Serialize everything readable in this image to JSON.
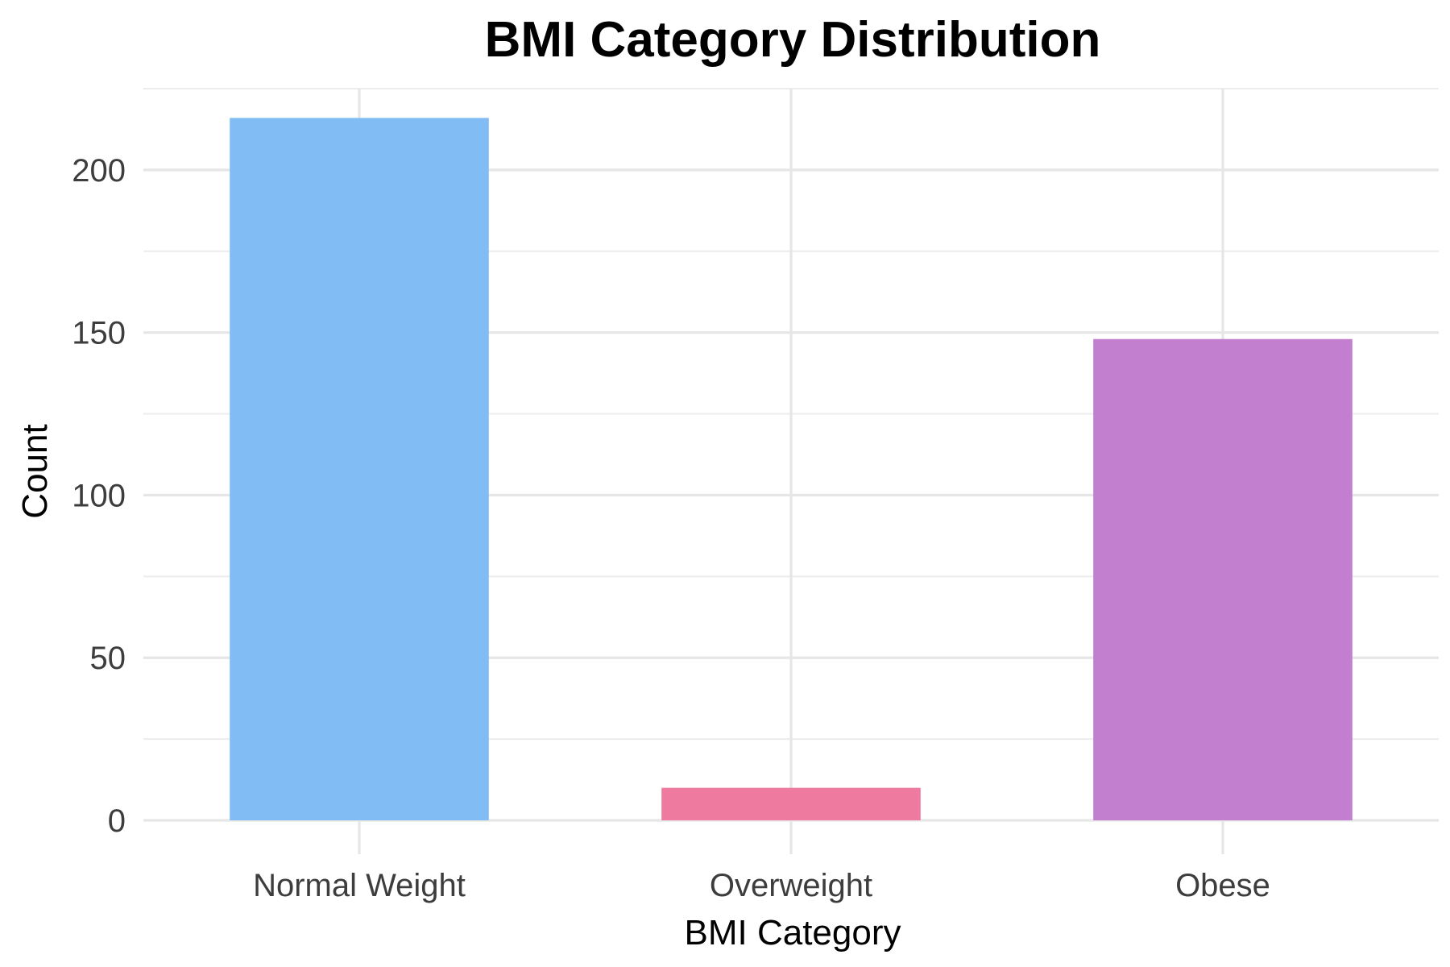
{
  "chart_data": {
    "type": "bar",
    "title": "BMI Category Distribution",
    "xlabel": "BMI Category",
    "ylabel": "Count",
    "categories": [
      "Normal Weight",
      "Overweight",
      "Obese"
    ],
    "values": [
      216,
      10,
      148
    ],
    "colors": [
      "#82bcf5",
      "#ef7aa0",
      "#c27ecf"
    ],
    "ylim": [
      0,
      225
    ],
    "y_ticks": [
      0,
      50,
      100,
      150,
      200
    ],
    "y_tick_labels": [
      "0",
      "50",
      "100",
      "150",
      "200"
    ],
    "grid": true,
    "legend": "none"
  }
}
